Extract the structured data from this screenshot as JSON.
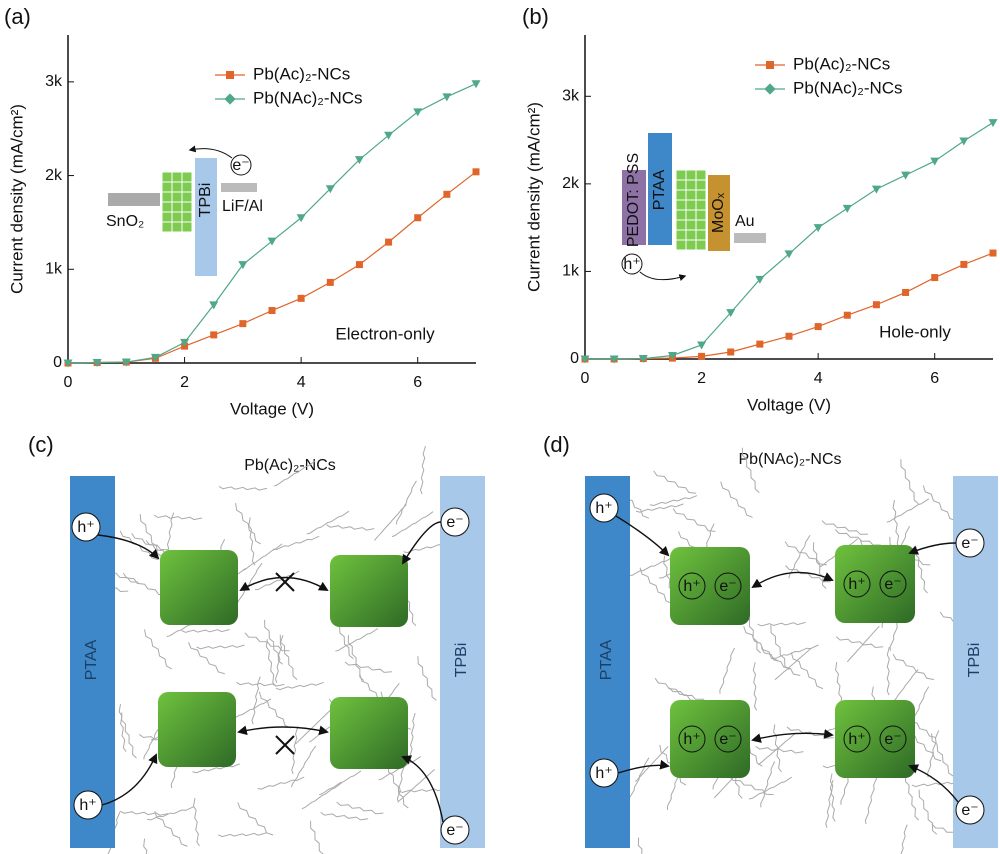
{
  "chart_data": [
    {
      "type": "line",
      "panel_label": "(a)",
      "x_label": "Voltage (V)",
      "y_label": "Current density (mA/cm²)",
      "annotation": "Electron-only",
      "x": [
        0,
        0.5,
        1,
        1.5,
        2,
        2.5,
        3,
        3.5,
        4,
        4.5,
        5,
        5.5,
        6,
        6.5,
        7
      ],
      "series": [
        {
          "name": "Pb(Ac)₂-NCs",
          "color": "#e0652a",
          "marker": "square",
          "values": [
            0,
            5,
            10,
            50,
            180,
            300,
            420,
            560,
            690,
            860,
            1050,
            1290,
            1550,
            1800,
            2040
          ]
        },
        {
          "name": "Pb(NAc)₂-NCs",
          "color": "#4fa88a",
          "marker": "triangle-down",
          "values": [
            0,
            5,
            10,
            60,
            220,
            620,
            1050,
            1300,
            1550,
            1860,
            2170,
            2430,
            2680,
            2840,
            2980
          ]
        }
      ],
      "xlim": [
        0,
        7
      ],
      "xticks": [
        0,
        2,
        4,
        6
      ],
      "ylim": [
        0,
        3500
      ],
      "yticks": [
        0,
        {
          "value": 1000,
          "label": "1k"
        },
        {
          "value": 2000,
          "label": "2k"
        },
        {
          "value": 3000,
          "label": "3k"
        }
      ],
      "inset": {
        "labels": [
          "SnO₂",
          "TPBi",
          "LiF/Al"
        ],
        "carrier": "e⁻"
      }
    },
    {
      "type": "line",
      "panel_label": "(b)",
      "x_label": "Voltage (V)",
      "y_label": "Current density (mA/cm²)",
      "annotation": "Hole-only",
      "x": [
        0,
        0.5,
        1,
        1.5,
        2,
        2.5,
        3,
        3.5,
        4,
        4.5,
        5,
        5.5,
        6,
        6.5,
        7
      ],
      "series": [
        {
          "name": "Pb(Ac)₂-NCs",
          "color": "#e0652a",
          "marker": "square",
          "values": [
            0,
            0,
            5,
            10,
            30,
            80,
            170,
            260,
            370,
            500,
            620,
            760,
            930,
            1080,
            1210
          ]
        },
        {
          "name": "Pb(NAc)₂-NCs",
          "color": "#4fa88a",
          "marker": "triangle-down",
          "values": [
            0,
            0,
            5,
            40,
            160,
            530,
            910,
            1200,
            1500,
            1720,
            1940,
            2100,
            2260,
            2490,
            2700
          ]
        }
      ],
      "xlim": [
        0,
        7
      ],
      "xticks": [
        0,
        2,
        4,
        6
      ],
      "ylim": [
        0,
        3700
      ],
      "yticks": [
        0,
        {
          "value": 1000,
          "label": "1k"
        },
        {
          "value": 2000,
          "label": "2k"
        },
        {
          "value": 3000,
          "label": "3k"
        }
      ],
      "inset": {
        "labels": [
          "PEDOT: PSS",
          "PTAA",
          "MoOₓ",
          "Au"
        ],
        "carrier": "h⁺"
      }
    }
  ],
  "diagrams": [
    {
      "panel_label": "(c)",
      "title": "Pb(Ac)₂-NCs",
      "left": "PTAA",
      "right": "TPBi",
      "carriers": [
        "h⁺",
        "h⁺",
        "e⁻",
        "e⁻"
      ]
    },
    {
      "panel_label": "(d)",
      "title": "Pb(NAc)₂-NCs",
      "left": "PTAA",
      "right": "TPBi",
      "carriers": [
        "h⁺",
        "h⁺",
        "e⁻",
        "e⁻"
      ],
      "cube_labels": [
        "h⁺",
        "e⁻",
        "h⁺",
        "e⁻",
        "h⁺",
        "e⁻",
        "h⁺",
        "e⁻"
      ]
    }
  ]
}
